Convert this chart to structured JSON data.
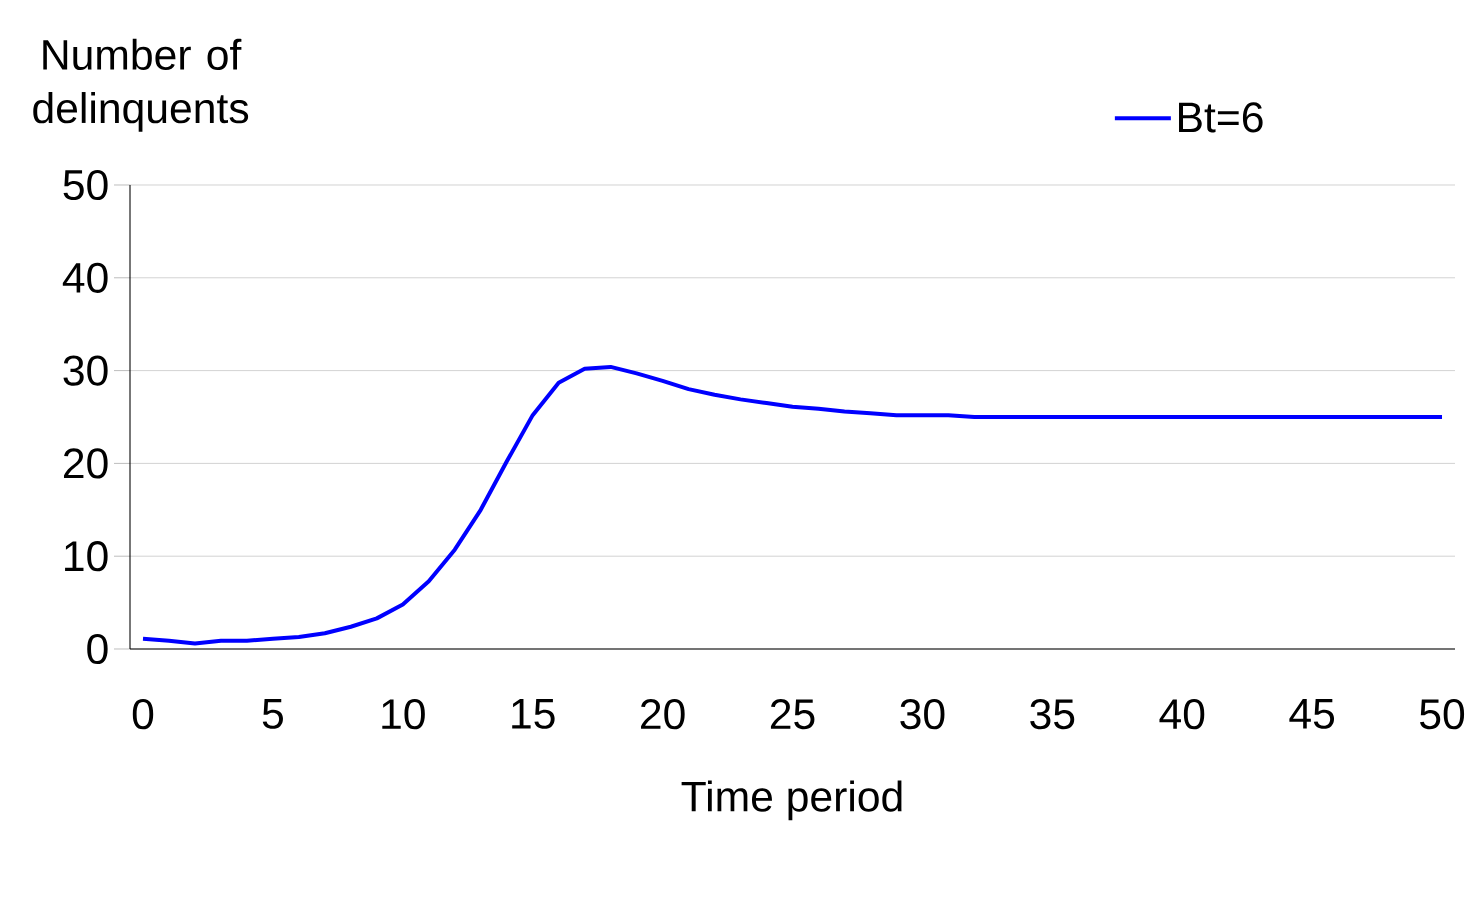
{
  "chart_data": {
    "type": "line",
    "xlabel": "Time period",
    "ylabel": "Number of delinquents",
    "x": [
      0,
      1,
      2,
      3,
      4,
      5,
      6,
      7,
      8,
      9,
      10,
      11,
      12,
      13,
      14,
      15,
      16,
      17,
      18,
      19,
      20,
      21,
      22,
      23,
      24,
      25,
      26,
      27,
      28,
      29,
      30,
      31,
      32,
      33,
      34,
      35,
      36,
      37,
      38,
      39,
      40,
      41,
      42,
      43,
      44,
      45,
      46,
      47,
      48,
      49,
      50
    ],
    "series": [
      {
        "name": "Bt=6",
        "color": "#0000ff",
        "values": [
          1.1,
          0.9,
          0.6,
          0.9,
          0.9,
          1.1,
          1.3,
          1.7,
          2.4,
          3.3,
          4.8,
          7.3,
          10.7,
          15.0,
          20.2,
          25.2,
          28.7,
          30.2,
          30.4,
          29.7,
          28.9,
          28.0,
          27.4,
          26.9,
          26.5,
          26.1,
          25.9,
          25.6,
          25.4,
          25.2,
          25.2,
          25.2,
          25.0,
          25.0,
          25.0,
          25.0,
          25.0,
          25.0,
          25.0,
          25.0,
          25.0,
          25.0,
          25.0,
          25.0,
          25.0,
          25.0,
          25.0,
          25.0,
          25.0,
          25.0,
          25.0
        ]
      }
    ],
    "xlim": [
      -0.5,
      50.5
    ],
    "ylim": [
      0,
      50
    ],
    "xticks": [
      0,
      5,
      10,
      15,
      20,
      25,
      30,
      35,
      40,
      45,
      50
    ],
    "yticks": [
      0,
      10,
      20,
      30,
      40,
      50
    ],
    "grid": "y",
    "legend": "top right",
    "marker": "none",
    "line_style": "solid"
  }
}
